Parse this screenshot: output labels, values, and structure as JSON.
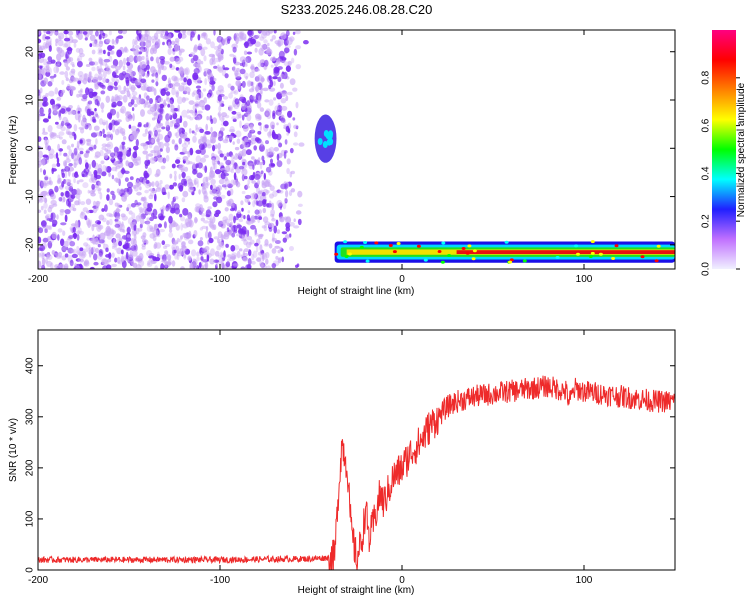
{
  "title": "S233.2025.246.08.28.C20",
  "colors": {
    "scatter": "#7b2cf0",
    "scatter_light": "#c9a6f5",
    "snr_line": "#ee2a2a",
    "colorbar": [
      "#f0f0ff",
      "#c070ff",
      "#2020ff",
      "#00ffff",
      "#00ff00",
      "#ffff00",
      "#ff8000",
      "#ff0000",
      "#ff0080"
    ]
  },
  "chart_data": [
    {
      "type": "heatmap",
      "title": "",
      "xlabel": "Height of straight line (km)",
      "ylabel": "Frequency (Hz)",
      "xlim": [
        -200,
        150
      ],
      "ylim": [
        -25,
        24.5
      ],
      "x_ticks": [
        -200,
        -100,
        0,
        100
      ],
      "y_ticks": [
        -20,
        -10,
        0,
        10,
        20
      ],
      "noise_region": {
        "x": [
          -200,
          -52
        ],
        "y": [
          -25,
          24.5
        ]
      },
      "blob": {
        "x_center": -42,
        "y_center": 2,
        "x_halfwidth": 6,
        "y_halfwidth": 5
      },
      "signal_band": {
        "x": [
          -37,
          150
        ],
        "y_center": -21.5,
        "y_halfwidth": 2.2,
        "peak_x": [
          30,
          150
        ]
      },
      "colorbar": {
        "label": "Normalized spectral amplitude",
        "range": [
          0,
          1
        ],
        "ticks": [
          "0.0",
          "0.2",
          "0.4",
          "0.6",
          "0.8"
        ]
      }
    },
    {
      "type": "line",
      "title": "",
      "xlabel": "Height of straight line (km)",
      "ylabel": "SNR (10 * v/v)",
      "xlim": [
        -200,
        150
      ],
      "ylim": [
        0,
        470
      ],
      "x_ticks": [
        -200,
        -100,
        0,
        100
      ],
      "y_ticks": [
        0,
        100,
        200,
        300,
        400
      ],
      "series": [
        {
          "x": [
            -200,
            -150,
            -100,
            -50,
            -37,
            -35,
            -33,
            -30,
            -28,
            -25,
            -22,
            -20,
            -18,
            -15,
            -12,
            -10,
            -5,
            0,
            5,
            10,
            15,
            20,
            25,
            30,
            40,
            50,
            60,
            70,
            80,
            85,
            90,
            92,
            95,
            100,
            110,
            120,
            130,
            140,
            150
          ],
          "y": [
            20,
            20,
            20,
            22,
            25,
            150,
            250,
            200,
            80,
            20,
            60,
            120,
            60,
            100,
            150,
            130,
            180,
            200,
            230,
            250,
            280,
            300,
            320,
            330,
            340,
            345,
            350,
            355,
            360,
            355,
            350,
            330,
            355,
            350,
            345,
            340,
            335,
            330,
            330
          ]
        }
      ]
    }
  ]
}
